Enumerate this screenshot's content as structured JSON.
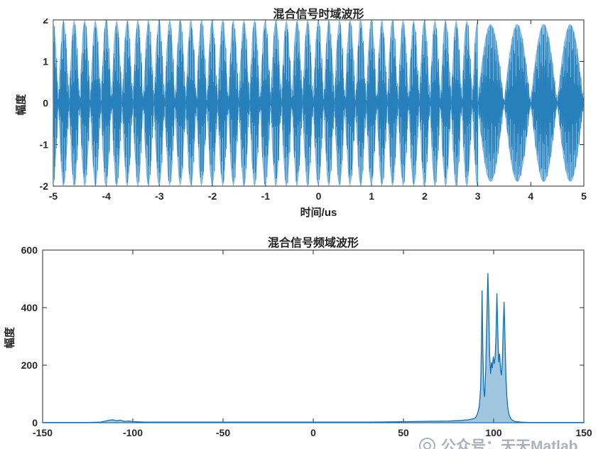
{
  "chart_data": [
    {
      "id": "time-domain",
      "type": "line",
      "title": "混合信号时域波形",
      "xlabel": "时间/us",
      "ylabel": "幅度",
      "xlim": [
        -5,
        5
      ],
      "ylim": [
        -2,
        2
      ],
      "xticks": [
        -5,
        -4,
        -3,
        -2,
        -1,
        0,
        1,
        2,
        3,
        4,
        5
      ],
      "yticks": [
        -2,
        -1,
        0,
        1,
        2
      ],
      "grid": false,
      "colors": {
        "line": "#1170b2",
        "fill": "#6fb0dc",
        "axis": "#262626"
      },
      "signal": {
        "model": "dense amplitude-beating carrier from t=-5us to t=3us (two-tone beat, peak ±2), then four AM bursts from t=3us to t=5us (peak ±1.9); t in microseconds, frequencies in MHz",
        "segments": [
          {
            "kind": "two-tone-beat",
            "t": [
              -5,
              3
            ],
            "tones_mhz": [
              95,
              100
            ],
            "amps": [
              1,
              1
            ],
            "peak": 2
          },
          {
            "kind": "am-bursts",
            "t": [
              3,
              5
            ],
            "carrier_mhz": 100,
            "envelope_mhz": 1,
            "amp": 1.9,
            "lobes": 4
          }
        ]
      }
    },
    {
      "id": "frequency-domain",
      "type": "line",
      "title": "混合信号频域波形",
      "xlabel": "",
      "ylabel": "幅度",
      "xlim": [
        -150,
        150
      ],
      "ylim": [
        0,
        600
      ],
      "xticks": [
        -150,
        -100,
        -50,
        0,
        50,
        100,
        150
      ],
      "yticks": [
        0,
        200,
        400,
        600
      ],
      "grid": false,
      "colors": {
        "line": "#1170b2",
        "axis": "#262626"
      },
      "points": [
        [
          -150,
          1
        ],
        [
          -125,
          1
        ],
        [
          -118,
          2
        ],
        [
          -115,
          6
        ],
        [
          -113,
          9
        ],
        [
          -111,
          10
        ],
        [
          -109,
          7
        ],
        [
          -107,
          9
        ],
        [
          -105,
          5
        ],
        [
          -102,
          6
        ],
        [
          -100,
          4
        ],
        [
          -97,
          3
        ],
        [
          -93,
          2
        ],
        [
          -85,
          2
        ],
        [
          -70,
          2
        ],
        [
          -50,
          2
        ],
        [
          -30,
          2
        ],
        [
          -10,
          2
        ],
        [
          0,
          2
        ],
        [
          10,
          2
        ],
        [
          30,
          2
        ],
        [
          45,
          3
        ],
        [
          55,
          4
        ],
        [
          65,
          5
        ],
        [
          75,
          6
        ],
        [
          82,
          8
        ],
        [
          86,
          10
        ],
        [
          89,
          14
        ],
        [
          90,
          18
        ],
        [
          91,
          30
        ],
        [
          92,
          55
        ],
        [
          92.8,
          120
        ],
        [
          93.3,
          300
        ],
        [
          93.6,
          460
        ],
        [
          94,
          250
        ],
        [
          94.5,
          120
        ],
        [
          95,
          90
        ],
        [
          95.6,
          180
        ],
        [
          96.2,
          350
        ],
        [
          96.8,
          520
        ],
        [
          97.3,
          400
        ],
        [
          97.8,
          230
        ],
        [
          98.3,
          170
        ],
        [
          98.8,
          210
        ],
        [
          99.3,
          190
        ],
        [
          99.8,
          230
        ],
        [
          100.3,
          205
        ],
        [
          100.8,
          225
        ],
        [
          101.3,
          300
        ],
        [
          101.8,
          450
        ],
        [
          102.3,
          320
        ],
        [
          102.8,
          210
        ],
        [
          103.3,
          240
        ],
        [
          103.8,
          185
        ],
        [
          104.3,
          165
        ],
        [
          104.8,
          210
        ],
        [
          105.3,
          330
        ],
        [
          105.8,
          420
        ],
        [
          106.3,
          290
        ],
        [
          106.8,
          160
        ],
        [
          107.3,
          95
        ],
        [
          107.8,
          55
        ],
        [
          108.5,
          28
        ],
        [
          109.5,
          14
        ],
        [
          110.5,
          8
        ],
        [
          112,
          4
        ],
        [
          115,
          2
        ],
        [
          120,
          1
        ],
        [
          130,
          1
        ],
        [
          150,
          1
        ]
      ]
    }
  ],
  "watermark": {
    "text": "公众号：天天Matlab"
  }
}
